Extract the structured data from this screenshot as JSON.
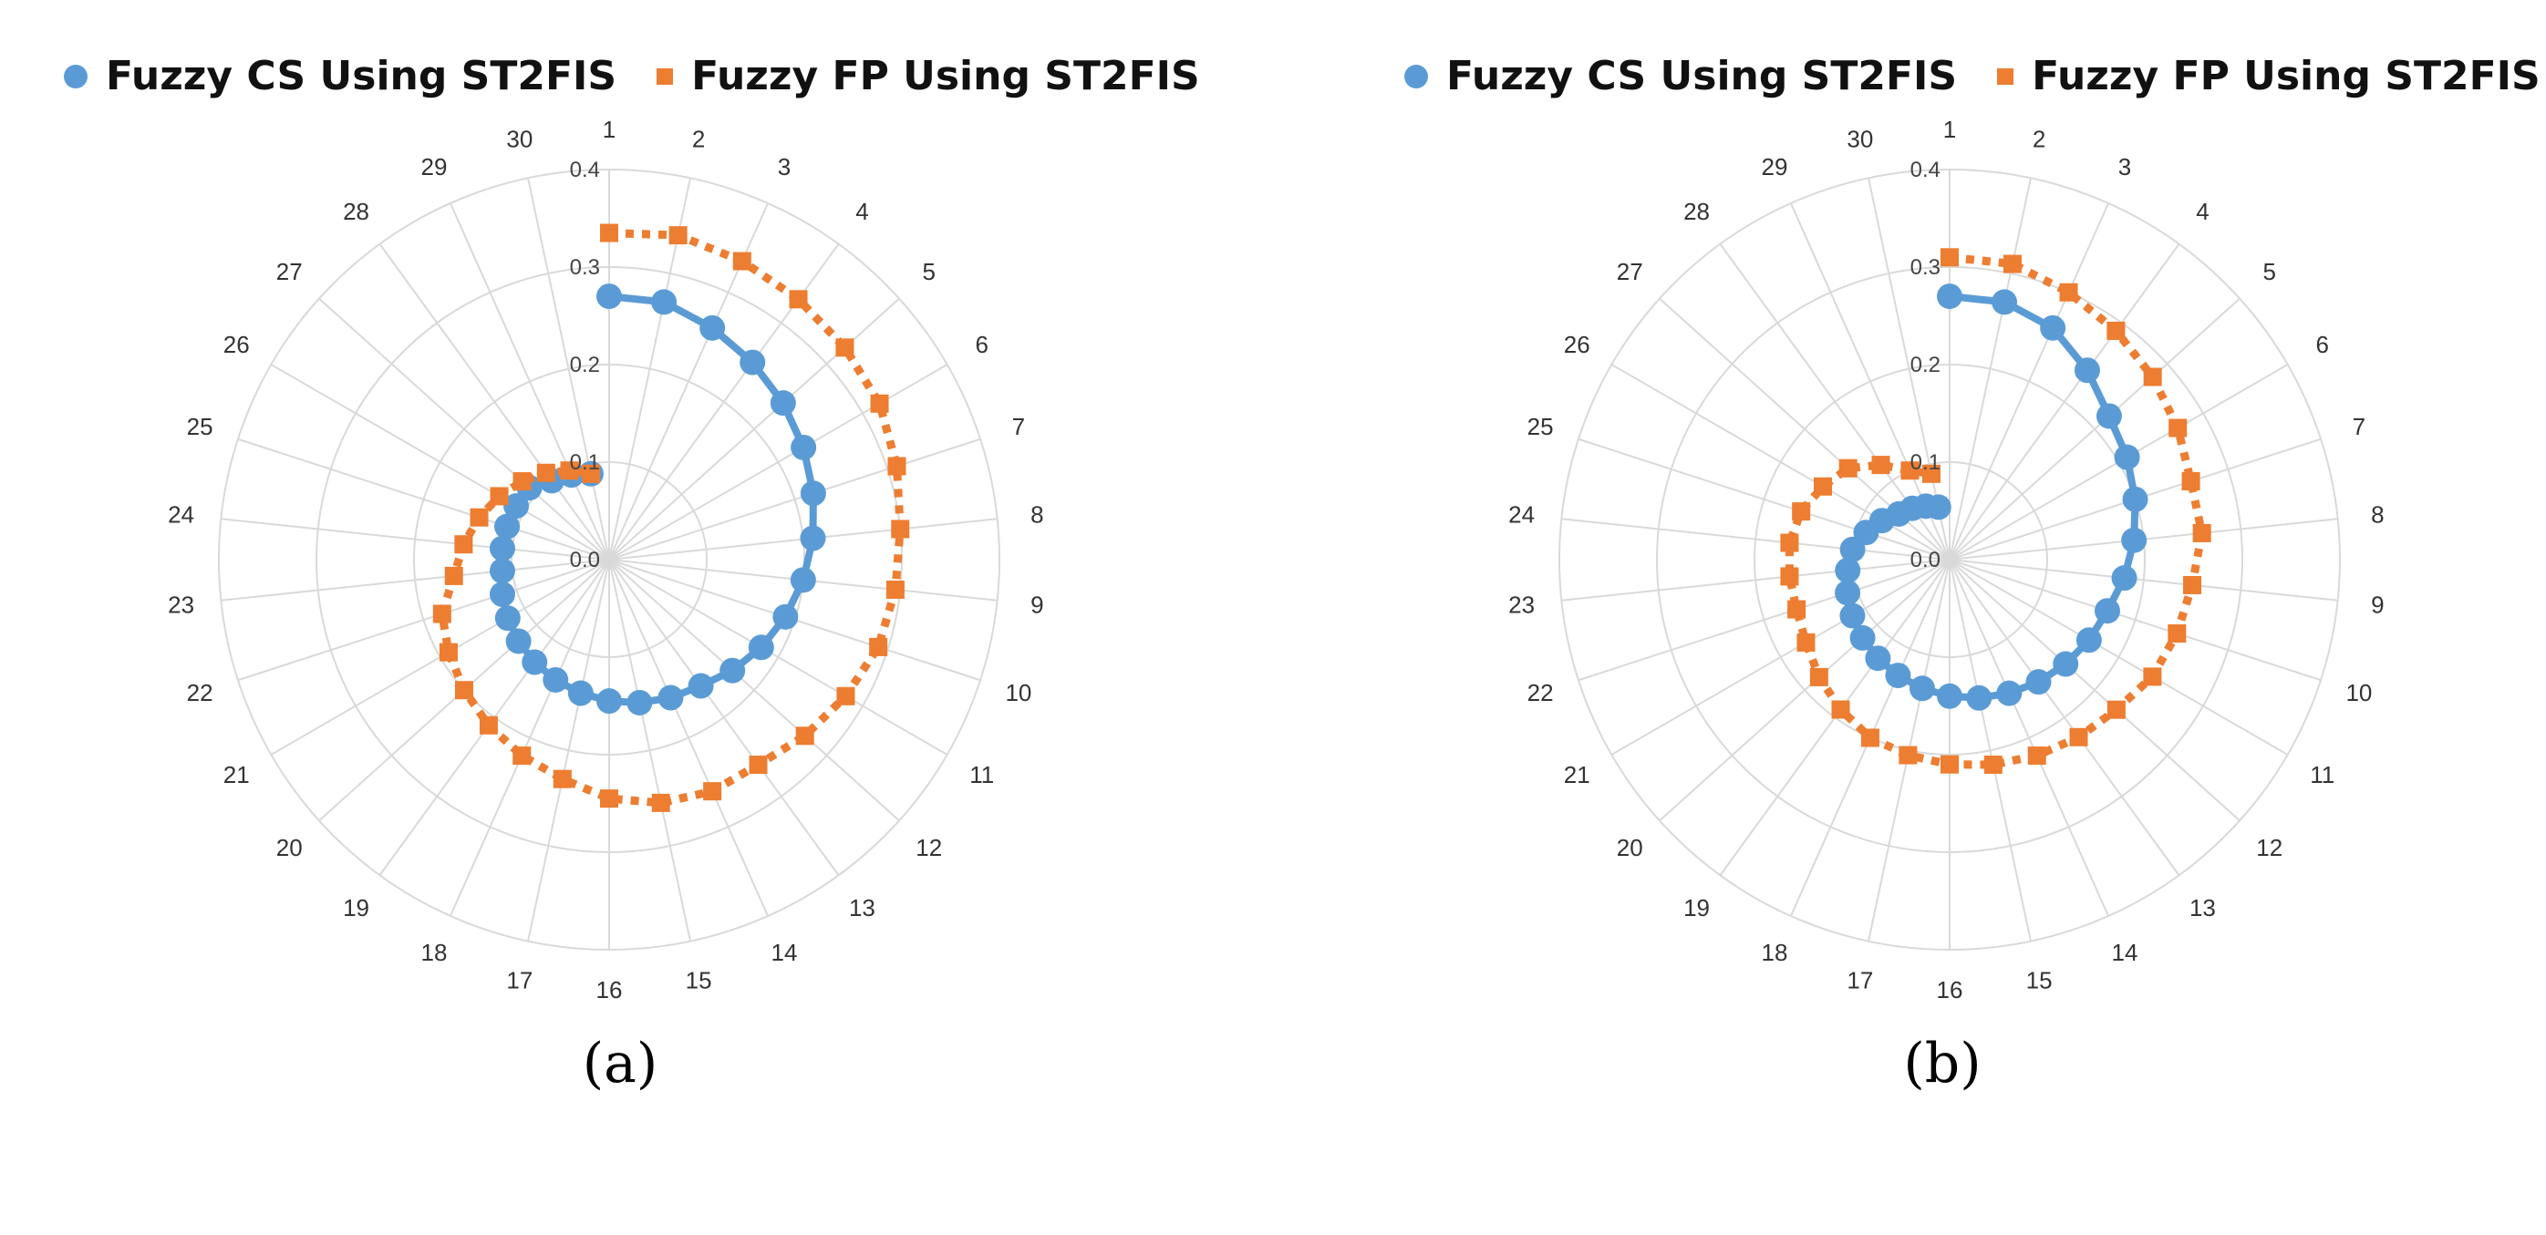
{
  "chart_data": [
    {
      "type": "radar",
      "caption": "(a)",
      "categories": [
        "1",
        "2",
        "3",
        "4",
        "5",
        "6",
        "7",
        "8",
        "9",
        "10",
        "11",
        "12",
        "13",
        "14",
        "15",
        "16",
        "17",
        "18",
        "19",
        "20",
        "21",
        "22",
        "23",
        "24",
        "25",
        "26",
        "27",
        "28",
        "29",
        "30"
      ],
      "radial_ticks": [
        "0.0",
        "0.1",
        "0.2",
        "0.3",
        "0.4"
      ],
      "rlim": [
        0,
        0.4
      ],
      "legend_position": "top",
      "series": [
        {
          "name": "Fuzzy CS Using ST2FIS",
          "color": "#5b9bd5",
          "marker": "circle",
          "line_style": "solid",
          "values": [
            0.27,
            0.27,
            0.26,
            0.25,
            0.24,
            0.23,
            0.22,
            0.21,
            0.2,
            0.19,
            0.18,
            0.17,
            0.16,
            0.155,
            0.15,
            0.145,
            0.14,
            0.135,
            0.13,
            0.125,
            0.12,
            0.115,
            0.11,
            0.11,
            0.11,
            0.11,
            0.11,
            0.1,
            0.095,
            0.09
          ]
        },
        {
          "name": "Fuzzy FP Using ST2FIS",
          "color": "#ed7d31",
          "marker": "square",
          "line_style": "dotted",
          "values": [
            0.335,
            0.34,
            0.335,
            0.33,
            0.325,
            0.32,
            0.31,
            0.3,
            0.295,
            0.29,
            0.28,
            0.27,
            0.26,
            0.26,
            0.255,
            0.245,
            0.23,
            0.22,
            0.21,
            0.2,
            0.19,
            0.18,
            0.16,
            0.15,
            0.14,
            0.13,
            0.12,
            0.11,
            0.1,
            0.09
          ]
        }
      ]
    },
    {
      "type": "radar",
      "caption": "(b)",
      "categories": [
        "1",
        "2",
        "3",
        "4",
        "5",
        "6",
        "7",
        "8",
        "9",
        "10",
        "11",
        "12",
        "13",
        "14",
        "15",
        "16",
        "17",
        "18",
        "19",
        "20",
        "21",
        "22",
        "23",
        "24",
        "25",
        "26",
        "27",
        "28",
        "29",
        "30"
      ],
      "radial_ticks": [
        "0.0",
        "0.1",
        "0.2",
        "0.3",
        "0.4"
      ],
      "rlim": [
        0,
        0.4
      ],
      "legend_position": "top",
      "series": [
        {
          "name": "Fuzzy CS Using ST2FIS",
          "color": "#5b9bd5",
          "marker": "circle",
          "line_style": "solid",
          "values": [
            0.27,
            0.27,
            0.26,
            0.24,
            0.22,
            0.21,
            0.2,
            0.19,
            0.18,
            0.17,
            0.165,
            0.16,
            0.155,
            0.15,
            0.145,
            0.14,
            0.135,
            0.13,
            0.125,
            0.12,
            0.115,
            0.11,
            0.105,
            0.1,
            0.09,
            0.08,
            0.07,
            0.065,
            0.06,
            0.055
          ]
        },
        {
          "name": "Fuzzy FP Using ST2FIS",
          "color": "#ed7d31",
          "marker": "square",
          "line_style": "dotted",
          "values": [
            0.31,
            0.31,
            0.3,
            0.29,
            0.28,
            0.27,
            0.26,
            0.26,
            0.25,
            0.245,
            0.24,
            0.23,
            0.225,
            0.22,
            0.215,
            0.21,
            0.205,
            0.2,
            0.19,
            0.18,
            0.17,
            0.165,
            0.165,
            0.165,
            0.16,
            0.15,
            0.14,
            0.12,
            0.1,
            0.09
          ]
        }
      ]
    }
  ]
}
